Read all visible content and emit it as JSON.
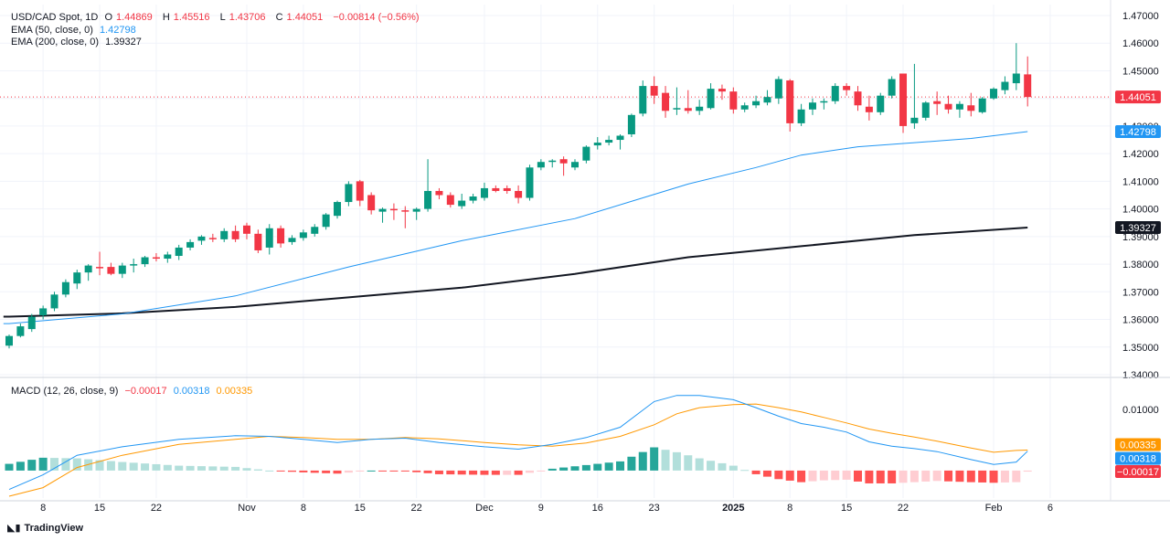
{
  "header": {
    "symbol": "USD/CAD Spot, 1D",
    "ohlc": [
      {
        "k": "O",
        "v": "1.44869"
      },
      {
        "k": "H",
        "v": "1.45516"
      },
      {
        "k": "L",
        "v": "1.43706"
      },
      {
        "k": "C",
        "v": "1.44051"
      }
    ],
    "change": "−0.00814 (−0.56%)",
    "ema50_label": "EMA (50, close, 0)",
    "ema50_value": "1.42798",
    "ema200_label": "EMA (200, close, 0)",
    "ema200_value": "1.39327",
    "macd_label": "MACD (12, 26, close, 9)",
    "macd_values": [
      "−0.00017",
      "0.00318",
      "0.00335"
    ]
  },
  "brand": "TradingView",
  "chart_data": {
    "type": "candlestick",
    "price_axis": {
      "min": 1.34,
      "max": 1.47,
      "ticks": [
        "1.47000",
        "1.46000",
        "1.45000",
        "1.44000",
        "1.43000",
        "1.42000",
        "1.41000",
        "1.40000",
        "1.39000",
        "1.38000",
        "1.37000",
        "1.36000",
        "1.35000",
        "1.34000"
      ]
    },
    "price_badges": [
      {
        "value": 1.44051,
        "label": "1.44051",
        "color": "#f23645",
        "text": "#ffffff"
      },
      {
        "value": 1.42798,
        "label": "1.42798",
        "color": "#2196f3",
        "text": "#ffffff"
      },
      {
        "value": 1.39327,
        "label": "1.39327",
        "color": "#131722",
        "text": "#ffffff"
      }
    ],
    "macd_axis": {
      "min": -0.0045,
      "max": 0.0145,
      "ticks": [
        "0.01000"
      ]
    },
    "macd_badges": [
      {
        "value": 0.00335,
        "label": "0.00335",
        "color": "#ff9800",
        "text": "#ffffff"
      },
      {
        "value": 0.00318,
        "label": "0.00318",
        "color": "#2196f3",
        "text": "#ffffff"
      },
      {
        "value": -0.00017,
        "label": "−0.00017",
        "color": "#f23645",
        "text": "#ffffff"
      }
    ],
    "x_ticks": [
      {
        "i": 3,
        "label": "8"
      },
      {
        "i": 8,
        "label": "15"
      },
      {
        "i": 13,
        "label": "22"
      },
      {
        "i": 21,
        "label": "Nov"
      },
      {
        "i": 26,
        "label": "8"
      },
      {
        "i": 31,
        "label": "15"
      },
      {
        "i": 36,
        "label": "22"
      },
      {
        "i": 42,
        "label": "Dec"
      },
      {
        "i": 47,
        "label": "9"
      },
      {
        "i": 52,
        "label": "16"
      },
      {
        "i": 57,
        "label": "23"
      },
      {
        "i": 64,
        "label": "2025"
      },
      {
        "i": 69,
        "label": "8"
      },
      {
        "i": 74,
        "label": "15"
      },
      {
        "i": 79,
        "label": "22"
      },
      {
        "i": 87,
        "label": "Feb"
      },
      {
        "i": 92,
        "label": "6"
      }
    ],
    "candles": [
      [
        1.3505,
        1.3545,
        1.3495,
        1.354
      ],
      [
        1.354,
        1.3585,
        1.3535,
        1.3575
      ],
      [
        1.3565,
        1.362,
        1.3555,
        1.361
      ],
      [
        1.3615,
        1.365,
        1.36,
        1.364
      ],
      [
        1.364,
        1.37,
        1.363,
        1.369
      ],
      [
        1.369,
        1.3745,
        1.368,
        1.3735
      ],
      [
        1.373,
        1.378,
        1.371,
        1.377
      ],
      [
        1.377,
        1.38,
        1.374,
        1.3795
      ],
      [
        1.379,
        1.3845,
        1.376,
        1.3785
      ],
      [
        1.379,
        1.3805,
        1.376,
        1.3765
      ],
      [
        1.3765,
        1.3805,
        1.375,
        1.3795
      ],
      [
        1.3795,
        1.382,
        1.377,
        1.38
      ],
      [
        1.38,
        1.383,
        1.379,
        1.3825
      ],
      [
        1.3825,
        1.384,
        1.381,
        1.382
      ],
      [
        1.382,
        1.3845,
        1.3805,
        1.3835
      ],
      [
        1.383,
        1.387,
        1.3815,
        1.386
      ],
      [
        1.386,
        1.389,
        1.385,
        1.388
      ],
      [
        1.3885,
        1.3905,
        1.387,
        1.39
      ],
      [
        1.3895,
        1.391,
        1.388,
        1.389
      ],
      [
        1.389,
        1.393,
        1.388,
        1.392
      ],
      [
        1.392,
        1.394,
        1.388,
        1.389
      ],
      [
        1.394,
        1.395,
        1.389,
        1.391
      ],
      [
        1.391,
        1.3925,
        1.384,
        1.385
      ],
      [
        1.386,
        1.3945,
        1.3835,
        1.393
      ],
      [
        1.393,
        1.394,
        1.386,
        1.3875
      ],
      [
        1.388,
        1.3905,
        1.387,
        1.3895
      ],
      [
        1.3895,
        1.3925,
        1.3885,
        1.3915
      ],
      [
        1.391,
        1.3945,
        1.39,
        1.3935
      ],
      [
        1.3935,
        1.3985,
        1.3925,
        1.398
      ],
      [
        1.3975,
        1.403,
        1.3965,
        1.4025
      ],
      [
        1.4025,
        1.41,
        1.401,
        1.409
      ],
      [
        1.41,
        1.4105,
        1.401,
        1.403
      ],
      [
        1.405,
        1.406,
        1.398,
        1.3995
      ],
      [
        1.399,
        1.4005,
        1.395,
        1.4
      ],
      [
        1.4,
        1.402,
        1.396,
        1.3995
      ],
      [
        1.3995,
        1.401,
        1.393,
        1.399
      ],
      [
        1.399,
        1.4005,
        1.396,
        1.4
      ],
      [
        1.4,
        1.418,
        1.399,
        1.4065
      ],
      [
        1.4065,
        1.4075,
        1.4035,
        1.405
      ],
      [
        1.405,
        1.406,
        1.4005,
        1.4015
      ],
      [
        1.401,
        1.4055,
        1.4,
        1.403
      ],
      [
        1.403,
        1.4055,
        1.402,
        1.4045
      ],
      [
        1.404,
        1.4095,
        1.403,
        1.4075
      ],
      [
        1.4075,
        1.4085,
        1.406,
        1.4065
      ],
      [
        1.4075,
        1.4085,
        1.4055,
        1.4065
      ],
      [
        1.4065,
        1.4085,
        1.402,
        1.404
      ],
      [
        1.404,
        1.416,
        1.403,
        1.415
      ],
      [
        1.415,
        1.418,
        1.414,
        1.417
      ],
      [
        1.417,
        1.418,
        1.415,
        1.4175
      ],
      [
        1.418,
        1.419,
        1.412,
        1.4165
      ],
      [
        1.415,
        1.418,
        1.414,
        1.417
      ],
      [
        1.4175,
        1.423,
        1.4165,
        1.4225
      ],
      [
        1.423,
        1.426,
        1.4215,
        1.424
      ],
      [
        1.424,
        1.4265,
        1.423,
        1.425
      ],
      [
        1.425,
        1.427,
        1.4215,
        1.4265
      ],
      [
        1.427,
        1.4345,
        1.426,
        1.434
      ],
      [
        1.4345,
        1.4465,
        1.4335,
        1.4445
      ],
      [
        1.4445,
        1.448,
        1.438,
        1.441
      ],
      [
        1.442,
        1.4445,
        1.433,
        1.4355
      ],
      [
        1.436,
        1.444,
        1.434,
        1.4365
      ],
      [
        1.4365,
        1.443,
        1.4345,
        1.4355
      ],
      [
        1.4355,
        1.4395,
        1.434,
        1.437
      ],
      [
        1.4365,
        1.4455,
        1.436,
        1.4435
      ],
      [
        1.4435,
        1.445,
        1.4395,
        1.4425
      ],
      [
        1.4425,
        1.444,
        1.4345,
        1.436
      ],
      [
        1.436,
        1.4385,
        1.435,
        1.4375
      ],
      [
        1.4375,
        1.441,
        1.4365,
        1.439
      ],
      [
        1.4385,
        1.443,
        1.4375,
        1.4405
      ],
      [
        1.44,
        1.448,
        1.438,
        1.447
      ],
      [
        1.4465,
        1.447,
        1.428,
        1.431
      ],
      [
        1.431,
        1.438,
        1.43,
        1.436
      ],
      [
        1.436,
        1.44,
        1.434,
        1.4385
      ],
      [
        1.4385,
        1.44,
        1.436,
        1.439
      ],
      [
        1.439,
        1.4455,
        1.438,
        1.4445
      ],
      [
        1.4445,
        1.4455,
        1.441,
        1.443
      ],
      [
        1.4425,
        1.4445,
        1.4355,
        1.4375
      ],
      [
        1.437,
        1.441,
        1.432,
        1.435
      ],
      [
        1.435,
        1.442,
        1.434,
        1.441
      ],
      [
        1.441,
        1.448,
        1.44,
        1.447
      ],
      [
        1.449,
        1.449,
        1.4275,
        1.43
      ],
      [
        1.431,
        1.4525,
        1.429,
        1.433
      ],
      [
        1.433,
        1.439,
        1.432,
        1.4385
      ],
      [
        1.439,
        1.4425,
        1.434,
        1.438
      ],
      [
        1.438,
        1.441,
        1.4345,
        1.436
      ],
      [
        1.436,
        1.439,
        1.433,
        1.438
      ],
      [
        1.4375,
        1.442,
        1.4335,
        1.4355
      ],
      [
        1.435,
        1.4405,
        1.4345,
        1.44
      ],
      [
        1.44,
        1.444,
        1.4395,
        1.4435
      ],
      [
        1.443,
        1.448,
        1.4415,
        1.446
      ],
      [
        1.4455,
        1.46,
        1.443,
        1.449
      ],
      [
        1.4487,
        1.4552,
        1.4371,
        1.4405
      ]
    ],
    "ema50": [
      [
        0,
        1.3585
      ],
      [
        10,
        1.362
      ],
      [
        20,
        1.3685
      ],
      [
        30,
        1.379
      ],
      [
        40,
        1.3885
      ],
      [
        50,
        1.3965
      ],
      [
        56,
        1.404
      ],
      [
        60,
        1.409
      ],
      [
        66,
        1.415
      ],
      [
        70,
        1.4195
      ],
      [
        75,
        1.4225
      ],
      [
        80,
        1.424
      ],
      [
        85,
        1.4255
      ],
      [
        90,
        1.42798
      ]
    ],
    "ema200": [
      [
        0,
        1.361
      ],
      [
        10,
        1.3622
      ],
      [
        20,
        1.3645
      ],
      [
        30,
        1.368
      ],
      [
        40,
        1.3715
      ],
      [
        50,
        1.3765
      ],
      [
        60,
        1.3825
      ],
      [
        70,
        1.3865
      ],
      [
        80,
        1.3905
      ],
      [
        90,
        1.39327
      ]
    ],
    "macd": [
      [
        0,
        -0.0031
      ],
      [
        3,
        -0.0007
      ],
      [
        6,
        0.0025
      ],
      [
        10,
        0.0039
      ],
      [
        15,
        0.0051
      ],
      [
        20,
        0.0057
      ],
      [
        23,
        0.0056
      ],
      [
        26,
        0.0051
      ],
      [
        29,
        0.0046
      ],
      [
        32,
        0.0051
      ],
      [
        35,
        0.0053
      ],
      [
        38,
        0.0046
      ],
      [
        42,
        0.0039
      ],
      [
        45,
        0.0035
      ],
      [
        48,
        0.0043
      ],
      [
        51,
        0.0054
      ],
      [
        54,
        0.0071
      ],
      [
        57,
        0.0113
      ],
      [
        59,
        0.0123
      ],
      [
        61,
        0.0123
      ],
      [
        64,
        0.0116
      ],
      [
        66,
        0.0103
      ],
      [
        68,
        0.0089
      ],
      [
        70,
        0.0077
      ],
      [
        72,
        0.0071
      ],
      [
        74,
        0.0063
      ],
      [
        76,
        0.0047
      ],
      [
        78,
        0.004
      ],
      [
        80,
        0.0036
      ],
      [
        82,
        0.0031
      ],
      [
        85,
        0.0018
      ],
      [
        87,
        0.001
      ],
      [
        89,
        0.0014
      ],
      [
        90,
        0.00318
      ]
    ],
    "signal": [
      [
        0,
        -0.0042
      ],
      [
        3,
        -0.0028
      ],
      [
        6,
        0.0005
      ],
      [
        10,
        0.0025
      ],
      [
        15,
        0.0043
      ],
      [
        20,
        0.0051
      ],
      [
        23,
        0.0056
      ],
      [
        26,
        0.0054
      ],
      [
        29,
        0.0051
      ],
      [
        32,
        0.0051
      ],
      [
        35,
        0.0054
      ],
      [
        38,
        0.0052
      ],
      [
        42,
        0.0046
      ],
      [
        45,
        0.0042
      ],
      [
        48,
        0.004
      ],
      [
        51,
        0.0045
      ],
      [
        54,
        0.0056
      ],
      [
        57,
        0.0075
      ],
      [
        59,
        0.0093
      ],
      [
        61,
        0.0103
      ],
      [
        64,
        0.0108
      ],
      [
        66,
        0.0109
      ],
      [
        68,
        0.0103
      ],
      [
        70,
        0.0096
      ],
      [
        72,
        0.0087
      ],
      [
        74,
        0.0078
      ],
      [
        76,
        0.0068
      ],
      [
        78,
        0.0061
      ],
      [
        80,
        0.0055
      ],
      [
        82,
        0.0048
      ],
      [
        85,
        0.0037
      ],
      [
        87,
        0.003
      ],
      [
        89,
        0.0033
      ],
      [
        90,
        0.00335
      ]
    ],
    "colors": {
      "up": "#089981",
      "down": "#f23645",
      "hist_up_strong": "#26a69a",
      "hist_up_weak": "#b2dfdb",
      "hist_down_strong": "#ff5252",
      "hist_down_weak": "#ffcdd2",
      "ema50": "#2196f3",
      "ema200": "#131722",
      "macd": "#2196f3",
      "signal": "#ff9800",
      "grid": "#f0f3fa",
      "axis_text": "#131722",
      "last_price_line": "#f23645"
    }
  }
}
